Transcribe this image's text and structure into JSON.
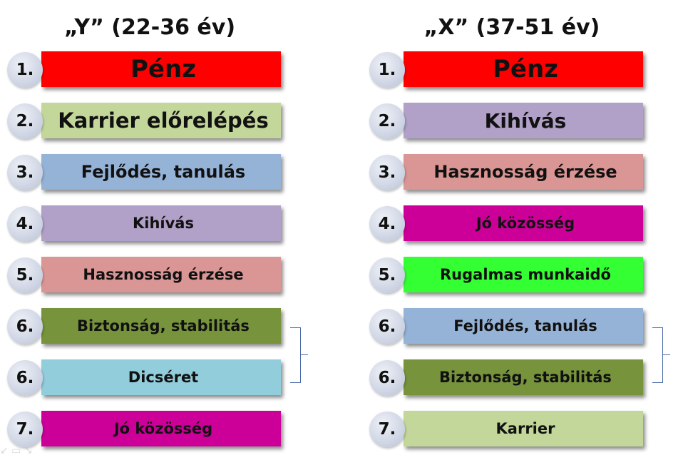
{
  "left": {
    "title": "„Y” (22-36 év)",
    "items": [
      {
        "rank": "1.",
        "label": "Pénz",
        "color": "#ff0000"
      },
      {
        "rank": "2.",
        "label": "Karrier előrelépés",
        "color": "#c4d79b"
      },
      {
        "rank": "3.",
        "label": "Fejlődés, tanulás",
        "color": "#95b3d7"
      },
      {
        "rank": "4.",
        "label": "Kihívás",
        "color": "#b1a0c7"
      },
      {
        "rank": "5.",
        "label": "Hasznosság érzése",
        "color": "#da9694"
      },
      {
        "rank": "6.",
        "label": "Biztonság, stabilitás",
        "color": "#77933c"
      },
      {
        "rank": "6.",
        "label": "Dicséret",
        "color": "#92cddc"
      },
      {
        "rank": "7.",
        "label": "Jó közösség",
        "color": "#cc0099"
      }
    ]
  },
  "right": {
    "title": "„X” (37-51 év)",
    "items": [
      {
        "rank": "1.",
        "label": "Pénz",
        "color": "#ff0000"
      },
      {
        "rank": "2.",
        "label": "Kihívás",
        "color": "#b1a0c7"
      },
      {
        "rank": "3.",
        "label": "Hasznosság érzése",
        "color": "#da9694"
      },
      {
        "rank": "4.",
        "label": "Jó közösség",
        "color": "#cc0099"
      },
      {
        "rank": "5.",
        "label": "Rugalmas munkaidő",
        "color": "#33ff33"
      },
      {
        "rank": "6.",
        "label": "Fejlődés, tanulás",
        "color": "#95b3d7"
      },
      {
        "rank": "6.",
        "label": "Biztonság, stabilitás",
        "color": "#77933c"
      },
      {
        "rank": "7.",
        "label": "Karrier",
        "color": "#c4d79b"
      }
    ]
  }
}
